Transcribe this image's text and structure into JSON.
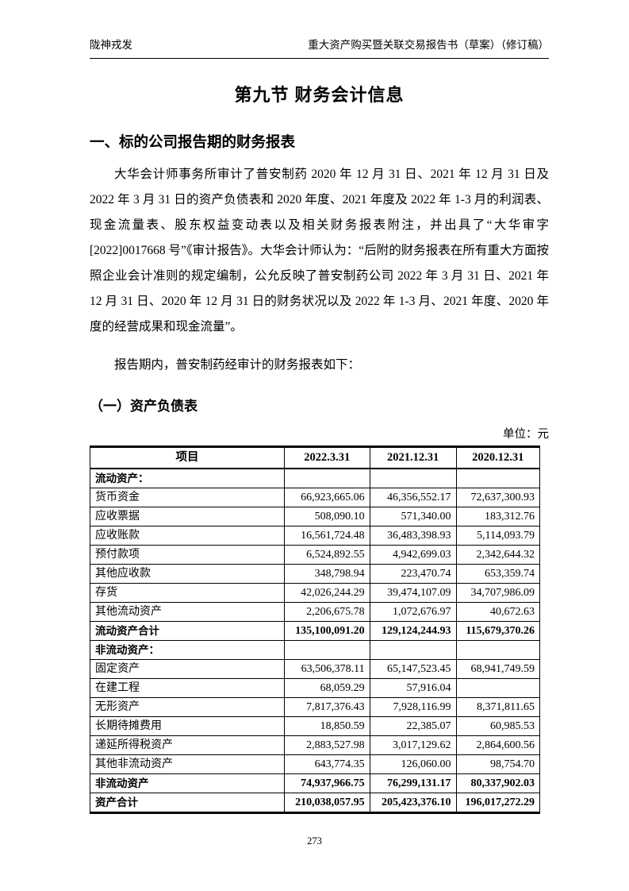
{
  "header": {
    "left": "陇神戎发",
    "right": "重大资产购买暨关联交易报告书（草案）（修订稿）"
  },
  "title": "第九节 财务会计信息",
  "section_heading": "一、标的公司报告期的财务报表",
  "paragraph1": "大华会计师事务所审计了普安制药 2020 年 12 月 31 日、2021 年 12 月 31 日及 2022 年 3 月 31 日的资产负债表和 2020 年度、2021 年度及 2022 年 1-3 月的利润表、现金流量表、股东权益变动表以及相关财务报表附注，并出具了“大华审字[2022]0017668 号”《审计报告》。大华会计师认为：“后附的财务报表在所有重大方面按照企业会计准则的规定编制，公允反映了普安制药公司 2022 年 3 月 31 日、2021 年 12 月 31 日、2020 年 12 月 31 日的财务状况以及 2022 年 1-3 月、2021 年度、2020 年度的经营成果和现金流量”。",
  "paragraph2": "报告期内，普安制药经审计的财务报表如下：",
  "subsection_heading": "（一）资产负债表",
  "unit_label": "单位：元",
  "balance_sheet": {
    "columns": [
      "项目",
      "2022.3.31",
      "2021.12.31",
      "2020.12.31"
    ],
    "rows": [
      {
        "item": "流动资产：",
        "v2022": "",
        "v2021": "",
        "v2020": "",
        "bold": true
      },
      {
        "item": "货币资金",
        "v2022": "66,923,665.06",
        "v2021": "46,356,552.17",
        "v2020": "72,637,300.93",
        "bold": false
      },
      {
        "item": "应收票据",
        "v2022": "508,090.10",
        "v2021": "571,340.00",
        "v2020": "183,312.76",
        "bold": false
      },
      {
        "item": "应收账款",
        "v2022": "16,561,724.48",
        "v2021": "36,483,398.93",
        "v2020": "5,114,093.79",
        "bold": false
      },
      {
        "item": "预付款项",
        "v2022": "6,524,892.55",
        "v2021": "4,942,699.03",
        "v2020": "2,342,644.32",
        "bold": false
      },
      {
        "item": "其他应收款",
        "v2022": "348,798.94",
        "v2021": "223,470.74",
        "v2020": "653,359.74",
        "bold": false
      },
      {
        "item": "存货",
        "v2022": "42,026,244.29",
        "v2021": "39,474,107.09",
        "v2020": "34,707,986.09",
        "bold": false
      },
      {
        "item": "其他流动资产",
        "v2022": "2,206,675.78",
        "v2021": "1,072,676.97",
        "v2020": "40,672.63",
        "bold": false
      },
      {
        "item": "流动资产合计",
        "v2022": "135,100,091.20",
        "v2021": "129,124,244.93",
        "v2020": "115,679,370.26",
        "bold": true
      },
      {
        "item": "非流动资产：",
        "v2022": "",
        "v2021": "",
        "v2020": "",
        "bold": true
      },
      {
        "item": "固定资产",
        "v2022": "63,506,378.11",
        "v2021": "65,147,523.45",
        "v2020": "68,941,749.59",
        "bold": false
      },
      {
        "item": "在建工程",
        "v2022": "68,059.29",
        "v2021": "57,916.04",
        "v2020": "",
        "bold": false
      },
      {
        "item": "无形资产",
        "v2022": "7,817,376.43",
        "v2021": "7,928,116.99",
        "v2020": "8,371,811.65",
        "bold": false
      },
      {
        "item": "长期待摊费用",
        "v2022": "18,850.59",
        "v2021": "22,385.07",
        "v2020": "60,985.53",
        "bold": false
      },
      {
        "item": "递延所得税资产",
        "v2022": "2,883,527.98",
        "v2021": "3,017,129.62",
        "v2020": "2,864,600.56",
        "bold": false
      },
      {
        "item": "其他非流动资产",
        "v2022": "643,774.35",
        "v2021": "126,060.00",
        "v2020": "98,754.70",
        "bold": false
      },
      {
        "item": "非流动资产",
        "v2022": "74,937,966.75",
        "v2021": "76,299,131.17",
        "v2020": "80,337,902.03",
        "bold": true
      },
      {
        "item": "资产合计",
        "v2022": "210,038,057.95",
        "v2021": "205,423,376.10",
        "v2020": "196,017,272.29",
        "bold": true
      }
    ]
  },
  "footer": {
    "page_number": "273"
  }
}
